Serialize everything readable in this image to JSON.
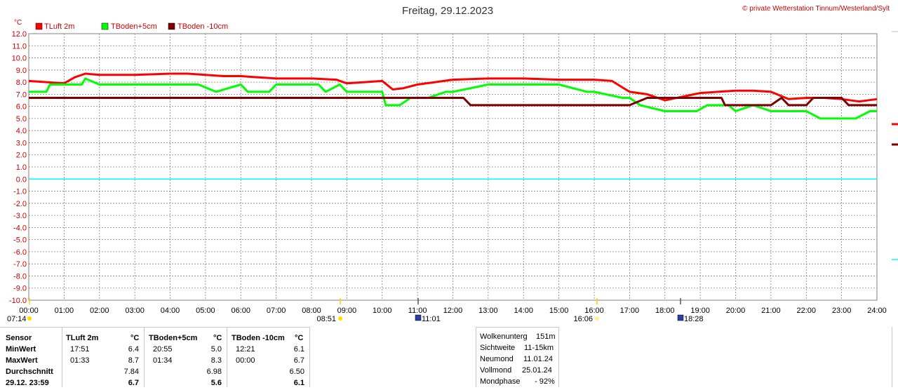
{
  "header": {
    "title": "Freitag, 29.12.2023",
    "copyright": "© private Wetterstation Tinnum/Westerland/Sylt",
    "unit": "°C"
  },
  "legend": [
    {
      "label": "TLuft 2m",
      "color": "#ff0000"
    },
    {
      "label": "TBoden+5cm",
      "color": "#00ff00"
    },
    {
      "label": "TBoden -10cm",
      "color": "#7f0000"
    }
  ],
  "chart_data": {
    "type": "line",
    "title": "Freitag, 29.12.2023",
    "ylabel": "°C",
    "ylim": [
      -10,
      12
    ],
    "y_ticks": [
      "12.0",
      "11.0",
      "10.0",
      "9.0",
      "8.0",
      "7.0",
      "6.0",
      "5.0",
      "4.0",
      "3.0",
      "2.0",
      "1.0",
      "0.0",
      "-1.0",
      "-2.0",
      "-3.0",
      "-4.0",
      "-5.0",
      "-6.0",
      "-7.0",
      "-8.0",
      "-9.0",
      "-10.0"
    ],
    "xlim": [
      0,
      24
    ],
    "x_ticks": [
      "00:00",
      "01:00",
      "02:00",
      "03:00",
      "04:00",
      "05:00",
      "06:00",
      "07:00",
      "08:00",
      "09:00",
      "10:00",
      "11:00",
      "12:00",
      "13:00",
      "14:00",
      "15:00",
      "16:00",
      "17:00",
      "18:00",
      "19:00",
      "20:00",
      "21:00",
      "22:00",
      "23:00",
      "24:00"
    ],
    "grid": true,
    "legend_position": "top-left",
    "reference_line": {
      "y": 0.0,
      "color": "#00ffff"
    },
    "series": [
      {
        "name": "TLuft 2m",
        "color": "#ff0000",
        "x": [
          0,
          0.5,
          1,
          1.3,
          1.6,
          2,
          3,
          4,
          4.5,
          5,
          5.5,
          6,
          6.5,
          7,
          8,
          8.7,
          9,
          9.5,
          10,
          10.3,
          10.6,
          11,
          11.5,
          12,
          13,
          14,
          15,
          16,
          16.5,
          17,
          17.5,
          18,
          18.5,
          19,
          19.5,
          20,
          20.5,
          21,
          21.5,
          22,
          22.5,
          23,
          23.5,
          24
        ],
        "y": [
          8.1,
          8.0,
          7.9,
          8.4,
          8.7,
          8.6,
          8.6,
          8.7,
          8.7,
          8.6,
          8.5,
          8.5,
          8.4,
          8.3,
          8.3,
          8.2,
          7.9,
          8.0,
          8.1,
          7.4,
          7.5,
          7.8,
          8.0,
          8.2,
          8.3,
          8.3,
          8.2,
          8.2,
          8.1,
          7.2,
          7.0,
          6.5,
          6.8,
          7.1,
          7.2,
          7.3,
          7.3,
          7.2,
          6.6,
          6.7,
          6.7,
          6.6,
          6.4,
          6.6
        ]
      },
      {
        "name": "TBoden+5cm",
        "color": "#00ff00",
        "x": [
          0,
          0.5,
          0.6,
          1,
          1.5,
          1.6,
          2,
          3,
          4,
          4.8,
          5.3,
          6,
          6.2,
          6.8,
          7,
          7.3,
          8.2,
          8.4,
          8.8,
          9,
          9.5,
          10,
          10.1,
          10.5,
          10.8,
          11,
          11.3,
          11.8,
          12,
          13,
          14,
          15,
          15.8,
          16,
          16.8,
          17,
          17.3,
          18,
          18.3,
          18.9,
          19.2,
          19.8,
          20,
          20.5,
          21,
          21.5,
          22,
          22.4,
          23,
          23.4,
          23.8,
          24
        ],
        "y": [
          7.2,
          7.2,
          7.8,
          7.8,
          7.8,
          8.3,
          7.8,
          7.8,
          7.8,
          7.8,
          7.2,
          7.8,
          7.2,
          7.2,
          7.8,
          7.8,
          7.8,
          7.2,
          7.8,
          7.2,
          7.2,
          7.2,
          6.1,
          6.1,
          6.7,
          6.7,
          6.7,
          7.2,
          7.2,
          7.8,
          7.8,
          7.8,
          7.2,
          7.2,
          6.7,
          6.7,
          6.1,
          5.6,
          5.6,
          5.6,
          6.1,
          6.1,
          5.6,
          6.1,
          5.6,
          5.6,
          5.6,
          5.0,
          5.0,
          5.0,
          5.6,
          5.6
        ]
      },
      {
        "name": "TBoden -10cm",
        "color": "#7f0000",
        "x": [
          0,
          4,
          8,
          12,
          12.3,
          12.5,
          13,
          14,
          15,
          16,
          17,
          17.5,
          18,
          19,
          19.6,
          19.7,
          20,
          21,
          21.3,
          21.5,
          22,
          22.2,
          22.4,
          23,
          23.2,
          23.5,
          24
        ],
        "y": [
          6.7,
          6.7,
          6.7,
          6.7,
          6.7,
          6.1,
          6.1,
          6.1,
          6.1,
          6.1,
          6.1,
          6.7,
          6.7,
          6.7,
          6.7,
          6.1,
          6.1,
          6.1,
          6.7,
          6.1,
          6.1,
          6.7,
          6.7,
          6.7,
          6.1,
          6.1,
          6.1
        ]
      }
    ],
    "markers": [
      {
        "label": "07:14",
        "kind": "sunrise"
      },
      {
        "label": "08:51",
        "kind": "sun-up"
      },
      {
        "label": "11:01",
        "kind": "moon"
      },
      {
        "label": "16:06",
        "kind": "sun-down"
      },
      {
        "label": "18:28",
        "kind": "moon"
      }
    ]
  },
  "stats": {
    "headers": {
      "sensor": "Sensor",
      "col1": "TLuft 2m",
      "col2": "TBoden+5cm",
      "col3": "TBoden -10cm",
      "unit": "°C"
    },
    "rows": [
      {
        "label": "MinWert",
        "t1": "17:51",
        "v1": "6.4",
        "t2": "20:55",
        "v2": "5.0",
        "t3": "12:21",
        "v3": "6.1"
      },
      {
        "label": "MaxWert",
        "t1": "01:33",
        "v1": "8.7",
        "t2": "01:34",
        "v2": "8.3",
        "t3": "00:00",
        "v3": "6.7"
      },
      {
        "label": "Durchschnitt",
        "t1": "",
        "v1": "7.84",
        "t2": "",
        "v2": "6.98",
        "t3": "",
        "v3": "6.50"
      },
      {
        "label": "29.12. 23:59",
        "t1": "",
        "v1": "6.7",
        "t2": "",
        "v2": "5.6",
        "t3": "",
        "v3": "6.1"
      }
    ]
  },
  "astro": [
    {
      "label": "Wolkenunterg",
      "value": "151m"
    },
    {
      "label": "Sichtweite",
      "value": "11-15km"
    },
    {
      "label": "Neumond",
      "value": "11.01.24"
    },
    {
      "label": "Vollmond",
      "value": "25.01.24"
    },
    {
      "label": "Mondphase",
      "value": "- 92%"
    }
  ]
}
